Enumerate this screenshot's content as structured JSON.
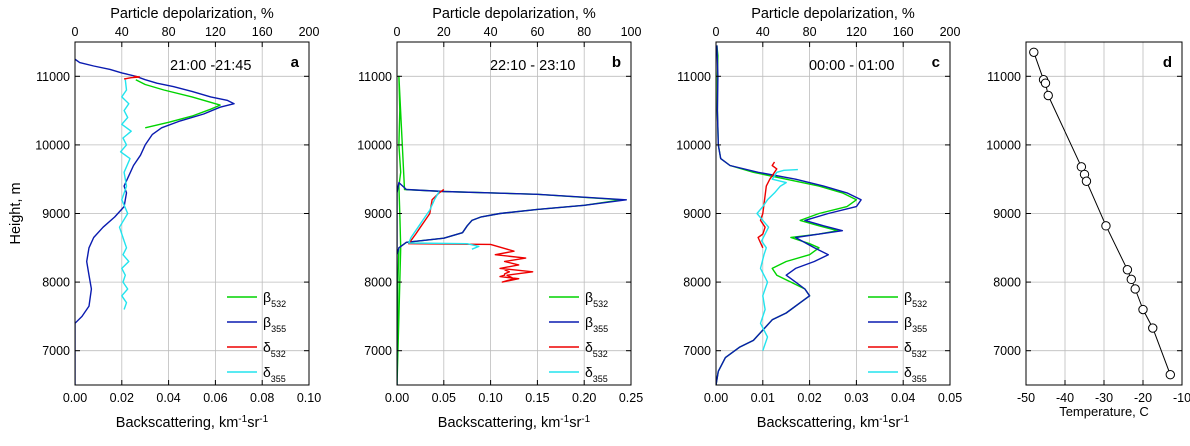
{
  "colors": {
    "b532": "#00d400",
    "b355": "#0a1bb0",
    "d532": "#ee0000",
    "d355": "#22e4ee",
    "grid": "#bdbdbd",
    "frame": "#000000",
    "temp": "#000000"
  },
  "chart_data": [
    {
      "type": "line",
      "panel_label": "a",
      "annotation": "21:00 -21:45",
      "top_xlabel": "Particle depolarization, %",
      "xlabel": "Backscattering, km-1sr-1",
      "xlabel_parts": [
        "Backscattering, km",
        "-1",
        "sr",
        "-1"
      ],
      "ylabel": "Height, m",
      "xlim": [
        0,
        0.1
      ],
      "xticks": [
        "0.00",
        "0.02",
        "0.04",
        "0.06",
        "0.08",
        "0.10"
      ],
      "top_xlim": [
        0,
        200
      ],
      "top_xticks": [
        "0",
        "40",
        "80",
        "120",
        "160",
        "200"
      ],
      "ylim": [
        6500,
        11500
      ],
      "yticks": [
        "7000",
        "8000",
        "9000",
        "10000",
        "11000"
      ],
      "grid": true,
      "legend_position": "bottom-right",
      "legend": [
        {
          "base": "β",
          "sub": "532",
          "color_key": "b532"
        },
        {
          "base": "β",
          "sub": "355",
          "color_key": "b355"
        },
        {
          "base": "δ",
          "sub": "532",
          "color_key": "d532"
        },
        {
          "base": "δ",
          "sub": "355",
          "color_key": "d355"
        }
      ],
      "series": [
        {
          "name": "β532",
          "axis": "bottom",
          "color_key": "b532",
          "x": [
            0.03,
            0.04,
            0.05,
            0.058,
            0.062,
            0.05,
            0.038,
            0.03,
            0.026
          ],
          "y": [
            10250,
            10330,
            10420,
            10520,
            10580,
            10700,
            10800,
            10880,
            10950
          ]
        },
        {
          "name": "β355",
          "axis": "bottom",
          "color_key": "b355",
          "x": [
            0,
            0,
            0.003,
            0.006,
            0.007,
            0.006,
            0.005,
            0.006,
            0.008,
            0.012,
            0.017,
            0.021,
            0.022,
            0.021,
            0.023,
            0.025,
            0.028,
            0.03,
            0.033,
            0.037,
            0.045,
            0.055,
            0.062,
            0.068,
            0.065,
            0.058,
            0.05,
            0.042,
            0.035,
            0.03,
            0.026,
            0.02,
            0.015,
            0.008,
            0.002,
            0
          ],
          "y": [
            6500,
            7400,
            7500,
            7650,
            7900,
            8100,
            8300,
            8500,
            8650,
            8800,
            8950,
            9100,
            9300,
            9400,
            9550,
            9700,
            9850,
            10000,
            10150,
            10250,
            10350,
            10450,
            10550,
            10600,
            10650,
            10700,
            10780,
            10850,
            10900,
            10950,
            11000,
            11050,
            11100,
            11150,
            11200,
            11250
          ]
        },
        {
          "name": "δ532",
          "axis": "top",
          "color_key": "d532",
          "x": [
            42,
            48,
            55,
            50
          ],
          "y": [
            10960,
            10980,
            10990,
            11000
          ]
        },
        {
          "name": "δ355",
          "axis": "top",
          "color_key": "d355",
          "x": [
            42,
            44,
            40,
            45,
            41,
            43,
            40,
            46,
            41,
            44,
            42,
            38,
            45,
            40,
            44,
            42,
            47,
            39,
            44,
            41,
            48,
            40,
            45,
            42,
            46,
            40,
            44,
            43
          ],
          "y": [
            7600,
            7700,
            7800,
            7900,
            8000,
            8100,
            8200,
            8300,
            8400,
            8500,
            8600,
            8800,
            9000,
            9200,
            9400,
            9600,
            9800,
            9900,
            10000,
            10100,
            10200,
            10300,
            10400,
            10500,
            10600,
            10700,
            10800,
            10950
          ]
        }
      ]
    },
    {
      "type": "line",
      "panel_label": "b",
      "annotation": "22:10 - 23:10",
      "top_xlabel": "Particle depolarization, %",
      "xlabel": "Backscattering, km-1sr-1",
      "xlabel_parts": [
        "Backscattering, km",
        "-1",
        "sr",
        "-1"
      ],
      "xlim": [
        0,
        0.25
      ],
      "xticks": [
        "0.00",
        "0.05",
        "0.10",
        "0.15",
        "0.20",
        "0.25"
      ],
      "top_xlim": [
        0,
        100
      ],
      "top_xticks": [
        "0",
        "20",
        "40",
        "60",
        "80",
        "100"
      ],
      "ylim": [
        6500,
        11500
      ],
      "yticks": [
        "7000",
        "8000",
        "9000",
        "10000",
        "11000"
      ],
      "grid": true,
      "legend_position": "bottom-right",
      "legend": [
        {
          "base": "β",
          "sub": "532",
          "color_key": "b532"
        },
        {
          "base": "β",
          "sub": "355",
          "color_key": "b355"
        },
        {
          "base": "δ",
          "sub": "532",
          "color_key": "d532"
        },
        {
          "base": "δ",
          "sub": "355",
          "color_key": "d355"
        }
      ],
      "series": [
        {
          "name": "β532",
          "axis": "bottom",
          "color_key": "b532",
          "x": [
            0,
            0.002,
            0.003,
            0.004,
            0.003,
            0.002,
            0.004,
            0.002,
            0.003,
            0.002,
            0.008,
            0.05,
            0.15,
            0.24,
            0.2,
            0.15,
            0.11,
            0.09,
            0.08,
            0.075,
            0.07,
            0.05,
            0.01,
            0.002,
            0.001,
            0
          ],
          "y": [
            6500,
            7500,
            8000,
            8500,
            9000,
            9400,
            9600,
            10000,
            10500,
            11000,
            9350,
            9320,
            9280,
            9200,
            9120,
            9060,
            9000,
            8950,
            8900,
            8820,
            8720,
            8640,
            8580,
            8500,
            8000,
            6600
          ]
        },
        {
          "name": "β355",
          "axis": "bottom",
          "color_key": "b355",
          "x": [
            0,
            0,
            0.002,
            0.01,
            0.05,
            0.15,
            0.245,
            0.2,
            0.15,
            0.11,
            0.09,
            0.08,
            0.075,
            0.07,
            0.05,
            0.01,
            0.002,
            0,
            0
          ],
          "y": [
            6500,
            9300,
            9450,
            9350,
            9320,
            9280,
            9200,
            9120,
            9060,
            9000,
            8950,
            8900,
            8820,
            8720,
            8640,
            8580,
            8500,
            8400,
            6500
          ]
        },
        {
          "name": "δ532",
          "axis": "top",
          "color_key": "d532",
          "x": [
            20,
            18,
            15,
            14,
            12,
            10,
            8,
            5,
            40,
            45,
            50,
            42,
            55,
            46,
            52,
            44,
            58,
            47,
            50,
            45,
            52,
            44,
            46,
            46,
            48,
            46
          ],
          "y": [
            9350,
            9300,
            9200,
            9000,
            8900,
            8800,
            8700,
            8560,
            8550,
            8500,
            8450,
            8400,
            8350,
            8300,
            8250,
            8200,
            8150,
            8100,
            8050,
            8000,
            8050,
            8080,
            8100,
            8120,
            8150,
            8180
          ]
        },
        {
          "name": "δ355",
          "axis": "top",
          "color_key": "d355",
          "x": [
            18,
            16,
            14,
            12,
            10,
            8,
            6,
            5,
            30,
            35,
            32
          ],
          "y": [
            9320,
            9200,
            9050,
            8950,
            8850,
            8750,
            8650,
            8570,
            8560,
            8520,
            8480
          ]
        }
      ]
    },
    {
      "type": "line",
      "panel_label": "c",
      "annotation": "00:00 - 01:00",
      "top_xlabel": "Particle depolarization, %",
      "xlabel": "Backscattering, km-1sr-1",
      "xlabel_parts": [
        "Backscattering, km",
        "-1",
        "sr",
        "-1"
      ],
      "xlim": [
        0,
        0.05
      ],
      "xticks": [
        "0.00",
        "0.01",
        "0.02",
        "0.03",
        "0.04",
        "0.05"
      ],
      "top_xlim": [
        0,
        200
      ],
      "top_xticks": [
        "0",
        "40",
        "80",
        "120",
        "160",
        "200"
      ],
      "ylim": [
        6500,
        11500
      ],
      "yticks": [
        "7000",
        "8000",
        "9000",
        "10000",
        "11000"
      ],
      "grid": true,
      "legend_position": "bottom-right",
      "legend": [
        {
          "base": "β",
          "sub": "532",
          "color_key": "b532"
        },
        {
          "base": "β",
          "sub": "355",
          "color_key": "b355"
        },
        {
          "base": "δ",
          "sub": "532",
          "color_key": "d532"
        },
        {
          "base": "δ",
          "sub": "355",
          "color_key": "d355"
        }
      ],
      "series": [
        {
          "name": "β532",
          "axis": "bottom",
          "color_key": "b532",
          "x": [
            0,
            0.0005,
            0.002,
            0.005,
            0.008,
            0.01,
            0.012,
            0.015,
            0.018,
            0.02,
            0.019,
            0.016,
            0.013,
            0.012,
            0.015,
            0.02,
            0.022,
            0.02,
            0.016,
            0.022,
            0.026,
            0.022,
            0.018,
            0.022,
            0.028,
            0.03,
            0.027,
            0.022,
            0.015,
            0.008,
            0.003,
            0.001,
            0.0005,
            0.0003,
            0.0003,
            0.0004,
            0.0002
          ],
          "y": [
            6500,
            6700,
            6900,
            7050,
            7150,
            7300,
            7450,
            7550,
            7700,
            7800,
            7900,
            8000,
            8100,
            8200,
            8300,
            8400,
            8500,
            8560,
            8650,
            8700,
            8750,
            8820,
            8900,
            9000,
            9100,
            9200,
            9300,
            9400,
            9500,
            9600,
            9700,
            9800,
            10000,
            10500,
            11000,
            11300,
            11450
          ]
        },
        {
          "name": "β355",
          "axis": "bottom",
          "color_key": "b355",
          "x": [
            0,
            0.0005,
            0.002,
            0.005,
            0.008,
            0.01,
            0.012,
            0.015,
            0.018,
            0.02,
            0.019,
            0.017,
            0.015,
            0.017,
            0.021,
            0.024,
            0.021,
            0.017,
            0.022,
            0.027,
            0.023,
            0.019,
            0.024,
            0.03,
            0.031,
            0.028,
            0.023,
            0.017,
            0.009,
            0.003,
            0.001,
            0.0005,
            0.0003,
            0.0004,
            0.0002
          ],
          "y": [
            6500,
            6700,
            6900,
            7050,
            7150,
            7300,
            7450,
            7550,
            7700,
            7800,
            7900,
            8000,
            8100,
            8200,
            8300,
            8400,
            8500,
            8650,
            8700,
            8750,
            8820,
            8900,
            9000,
            9100,
            9200,
            9300,
            9400,
            9500,
            9600,
            9700,
            9800,
            10000,
            10500,
            11000,
            11450
          ]
        },
        {
          "name": "δ532",
          "axis": "top",
          "color_key": "d532",
          "x": [
            40,
            36,
            40,
            42,
            38,
            40,
            43,
            46,
            50,
            52,
            48,
            50
          ],
          "y": [
            8500,
            8650,
            8700,
            8800,
            8900,
            9000,
            9400,
            9500,
            9600,
            9650,
            9700,
            9750
          ]
        },
        {
          "name": "δ355",
          "axis": "top",
          "color_key": "d355",
          "x": [
            40,
            44,
            38,
            42,
            40,
            44,
            38,
            41,
            43,
            39,
            42,
            45,
            40,
            35,
            40,
            44,
            50,
            55,
            60,
            48,
            50,
            52,
            58,
            70
          ],
          "y": [
            7000,
            7200,
            7400,
            7600,
            7800,
            8000,
            8200,
            8400,
            8500,
            8600,
            8700,
            8800,
            8900,
            9000,
            9100,
            9200,
            9300,
            9400,
            9450,
            9500,
            9550,
            9600,
            9630,
            9640
          ]
        }
      ]
    },
    {
      "type": "line",
      "panel_label": "d",
      "xlabel": "Temperature, C",
      "xlim": [
        -50,
        -10
      ],
      "xticks": [
        "-50",
        "-40",
        "-30",
        "-20",
        "-10"
      ],
      "ylim": [
        6500,
        11500
      ],
      "yticks": [
        "7000",
        "8000",
        "9000",
        "10000",
        "11000"
      ],
      "grid": true,
      "series": [
        {
          "name": "Temperature",
          "axis": "bottom",
          "color_key": "temp",
          "markers": "open-circle",
          "x": [
            -48,
            -45.5,
            -45,
            -44.3,
            -35.8,
            -35,
            -34.5,
            -29.5,
            -24,
            -23,
            -22,
            -20,
            -17.5,
            -13
          ],
          "y": [
            11350,
            10950,
            10900,
            10720,
            9680,
            9570,
            9470,
            8820,
            8180,
            8040,
            7900,
            7600,
            7330,
            6650
          ]
        }
      ]
    }
  ]
}
